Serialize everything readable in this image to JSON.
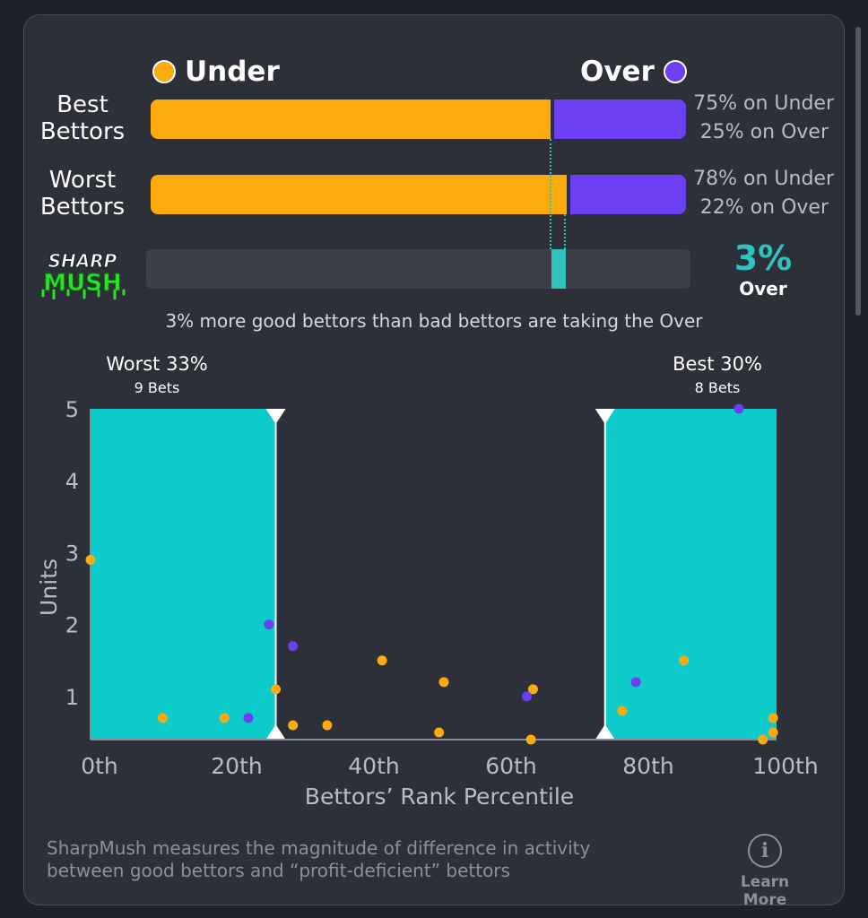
{
  "legend": {
    "under_label": "Under",
    "over_label": "Over",
    "under_color": "#fbab0c",
    "over_color": "#6d3ff2"
  },
  "rows": [
    {
      "label_line1": "Best",
      "label_line2": "Bettors",
      "under_pct": 75,
      "over_pct": 25,
      "under_text": "75% on Under",
      "over_text": "25% on Over"
    },
    {
      "label_line1": "Worst",
      "label_line2": "Bettors",
      "under_pct": 78,
      "over_pct": 22,
      "under_text": "78% on Under",
      "over_text": "22% on Over"
    }
  ],
  "sharpmush": {
    "logo_line1": "SHARP",
    "logo_line2": "MUSH",
    "value": "3%",
    "side": "Over",
    "accent": "#2ec4bd",
    "summary": "3% more good bettors than bad bettors are taking the Over"
  },
  "chart_data": {
    "type": "scatter",
    "xlabel": "Bettors’ Rank Percentile",
    "ylabel": "Units",
    "x_ticks": [
      "0th",
      "20th",
      "40th",
      "60th",
      "80th",
      "100th"
    ],
    "y_ticks": [
      "1",
      "2",
      "3",
      "4",
      "5"
    ],
    "xlim": [
      0,
      100
    ],
    "ylim": [
      0.4,
      5
    ],
    "regions": [
      {
        "name": "Worst 33%",
        "sub": "9 Bets",
        "x_from": 0,
        "x_to": 27
      },
      {
        "name": "Best 30%",
        "sub": "8 Bets",
        "x_from": 75,
        "x_to": 100
      }
    ],
    "series": [
      {
        "name": "Under",
        "color": "#fbab0c",
        "points": [
          [
            0,
            2.9
          ],
          [
            10.5,
            0.7
          ],
          [
            19.5,
            0.7
          ],
          [
            27,
            1.1
          ],
          [
            29.5,
            0.6
          ],
          [
            34.5,
            0.6
          ],
          [
            42.5,
            1.5
          ],
          [
            50.8,
            0.5
          ],
          [
            51.5,
            1.2
          ],
          [
            64.5,
            1.1
          ],
          [
            64.2,
            0.4
          ],
          [
            77.5,
            0.8
          ],
          [
            86.5,
            1.5
          ],
          [
            99.5,
            0.7
          ],
          [
            98,
            0.4
          ],
          [
            99.5,
            0.5
          ]
        ]
      },
      {
        "name": "Over",
        "color": "#6d3ff2",
        "points": [
          [
            26,
            2.0
          ],
          [
            23,
            0.7
          ],
          [
            29.5,
            1.7
          ],
          [
            63.6,
            1.0
          ],
          [
            79.5,
            1.2
          ],
          [
            94.5,
            5.0
          ]
        ]
      }
    ]
  },
  "footer": {
    "text_line1": "SharpMush measures the magnitude of difference in activity",
    "text_line2": "between good bettors and “profit-deficient” bettors",
    "learn_icon": "info-icon",
    "learn_label": "Learn More"
  }
}
